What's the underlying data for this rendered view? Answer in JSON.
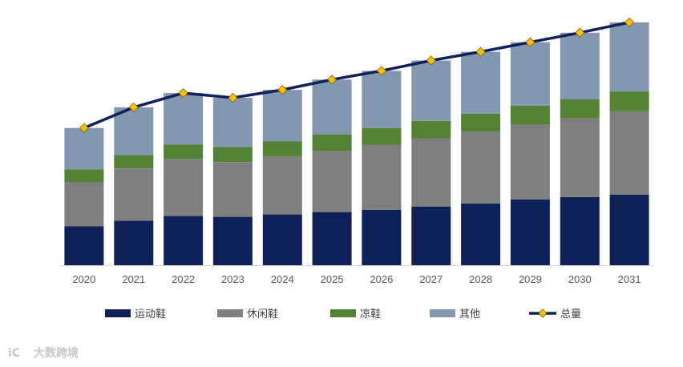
{
  "chart_data": {
    "type": "bar",
    "stacked": true,
    "title": "",
    "xlabel": "",
    "ylabel": "",
    "categories": [
      "2020",
      "2021",
      "2022",
      "2023",
      "2024",
      "2025",
      "2026",
      "2027",
      "2028",
      "2029",
      "2030",
      "2031"
    ],
    "series": [
      {
        "name": "运动鞋",
        "color": "#0e2259",
        "values": [
          49,
          56,
          62,
          61,
          64,
          67,
          70,
          74,
          78,
          83,
          86,
          89
        ]
      },
      {
        "name": "休闲鞋",
        "color": "#7f7f7f",
        "values": [
          56,
          66,
          72,
          69,
          73,
          77,
          82,
          86,
          90,
          94,
          99,
          105
        ]
      },
      {
        "name": "凉鞋",
        "color": "#548235",
        "values": [
          16,
          17,
          18,
          19,
          19,
          21,
          21,
          22,
          23,
          24,
          24,
          25
        ]
      },
      {
        "name": "其他",
        "color": "#8497b0",
        "values": [
          52,
          60,
          65,
          62,
          65,
          69,
          72,
          76,
          78,
          80,
          84,
          87
        ]
      }
    ],
    "line": {
      "name": "总量",
      "line_color": "#0e2259",
      "marker_color": "#ffc000",
      "marker": "diamond",
      "values": [
        173,
        199,
        217,
        211,
        221,
        234,
        245,
        258,
        269,
        281,
        293,
        306
      ]
    },
    "ylim": [
      0,
      312
    ],
    "grid": false,
    "legend_position": "bottom"
  },
  "watermark": {
    "logo": "iC",
    "text": "大数跨境"
  }
}
